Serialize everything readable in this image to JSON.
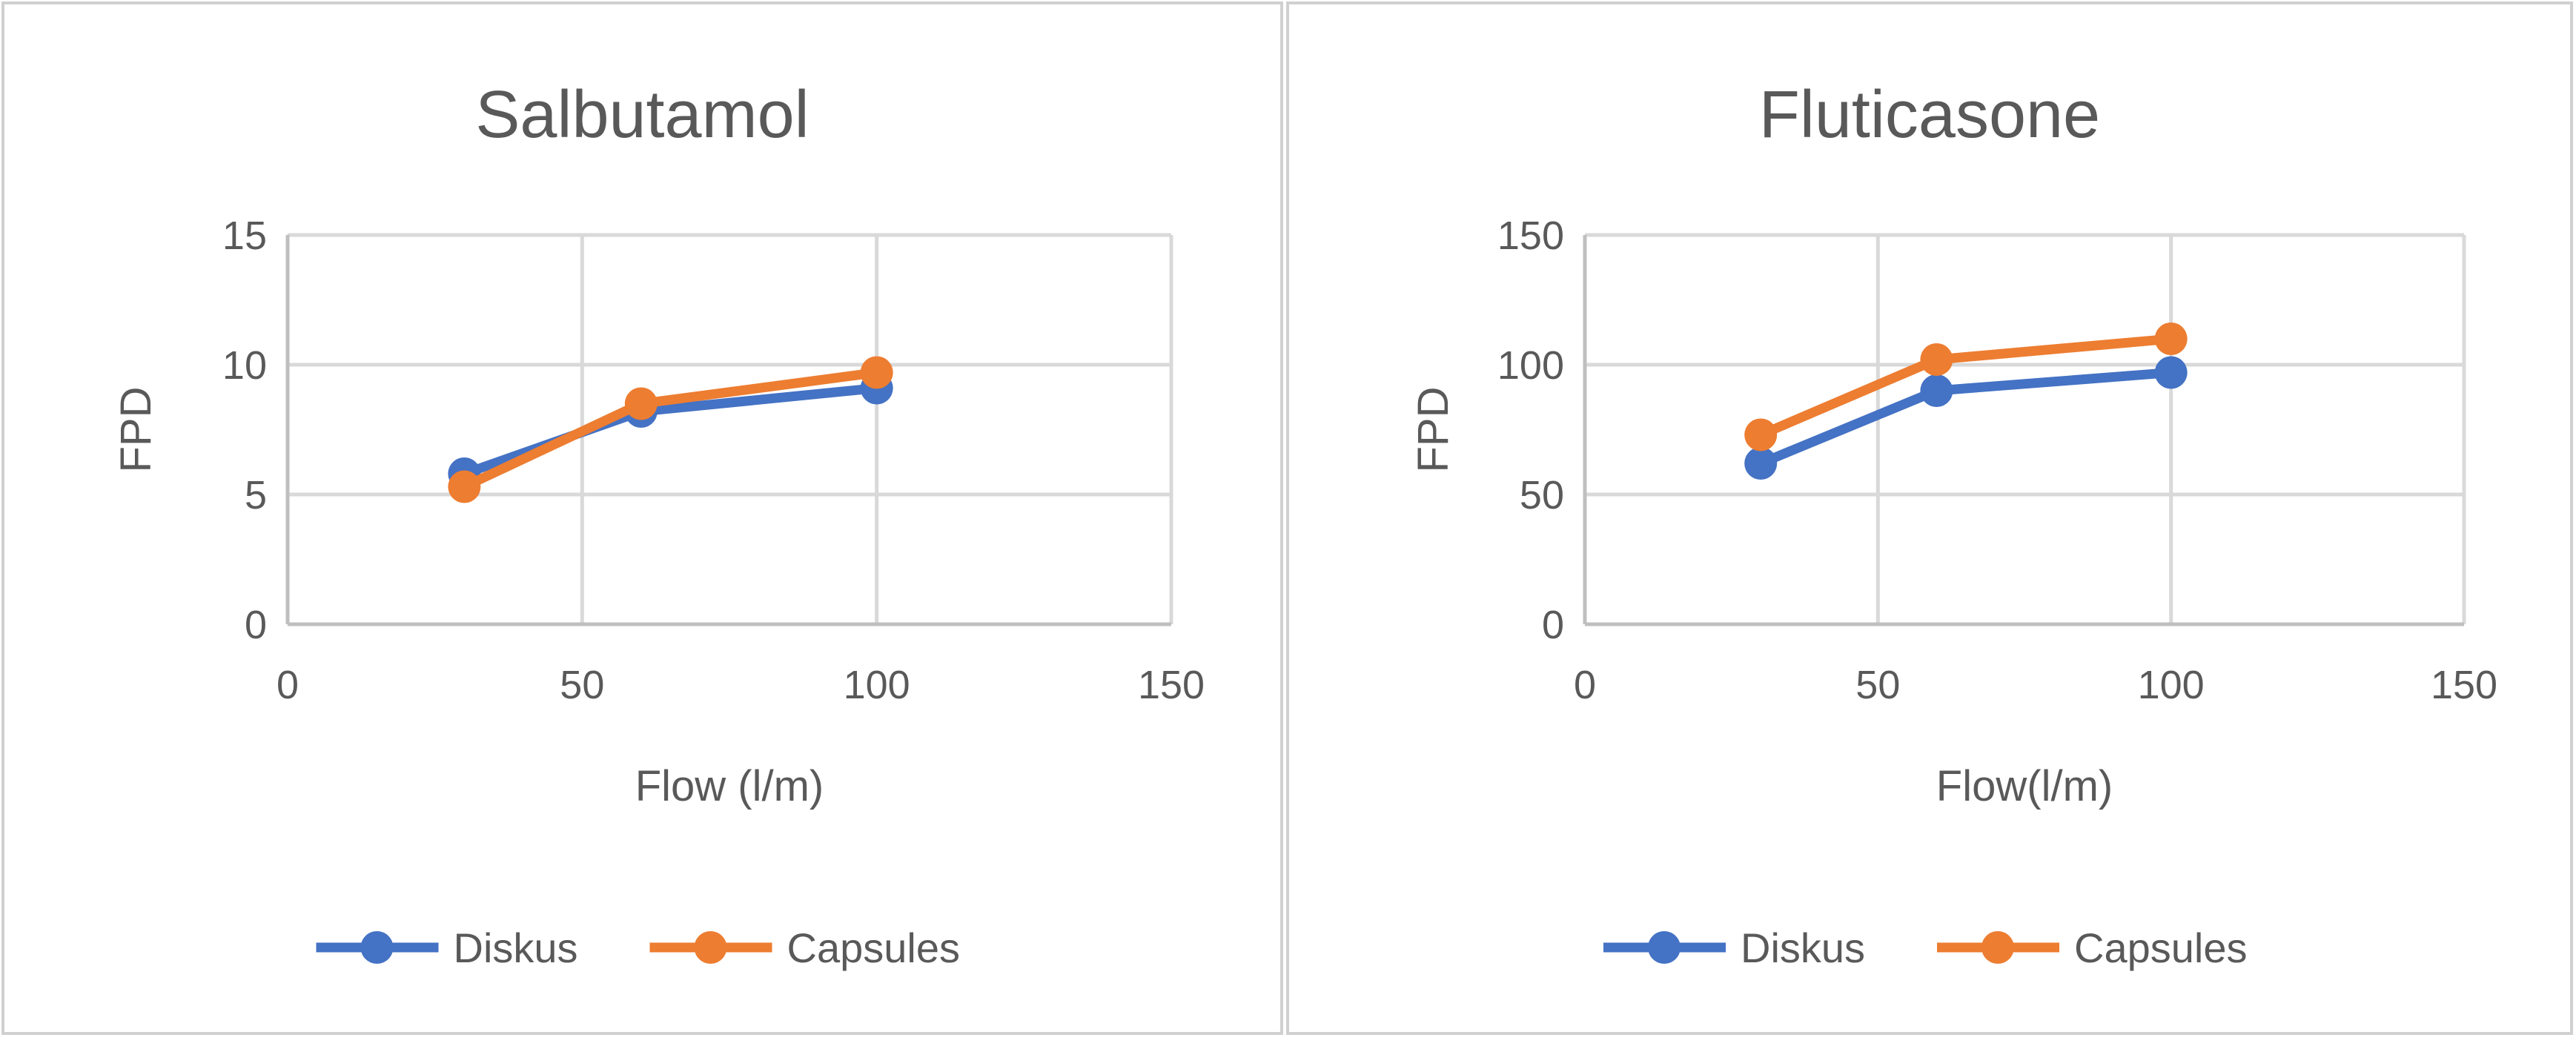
{
  "chart_data": [
    {
      "type": "line",
      "title": "Salbutamol",
      "xlabel": "Flow (l/m)",
      "ylabel": "FPD",
      "xlim": [
        0,
        150
      ],
      "ylim": [
        0,
        15
      ],
      "xticks": [
        0,
        50,
        100,
        150
      ],
      "yticks": [
        0,
        5,
        10,
        15
      ],
      "grid": true,
      "legend": "bottom",
      "x": [
        30,
        60,
        100
      ],
      "series": [
        {
          "name": "Diskus",
          "values": [
            5.8,
            8.2,
            9.1
          ],
          "color": "#4472C4"
        },
        {
          "name": "Capsules",
          "values": [
            5.3,
            8.5,
            9.7
          ],
          "color": "#ED7D31"
        }
      ]
    },
    {
      "type": "line",
      "title": "Fluticasone",
      "xlabel": "Flow(l/m)",
      "ylabel": "FPD",
      "xlim": [
        0,
        150
      ],
      "ylim": [
        0,
        150
      ],
      "xticks": [
        0,
        50,
        100,
        150
      ],
      "yticks": [
        0,
        50,
        100,
        150
      ],
      "grid": true,
      "legend": "bottom",
      "x": [
        30,
        60,
        100
      ],
      "series": [
        {
          "name": "Diskus",
          "values": [
            62,
            90,
            97
          ],
          "color": "#4472C4"
        },
        {
          "name": "Capsules",
          "values": [
            73,
            102,
            110
          ],
          "color": "#ED7D31"
        }
      ]
    }
  ]
}
